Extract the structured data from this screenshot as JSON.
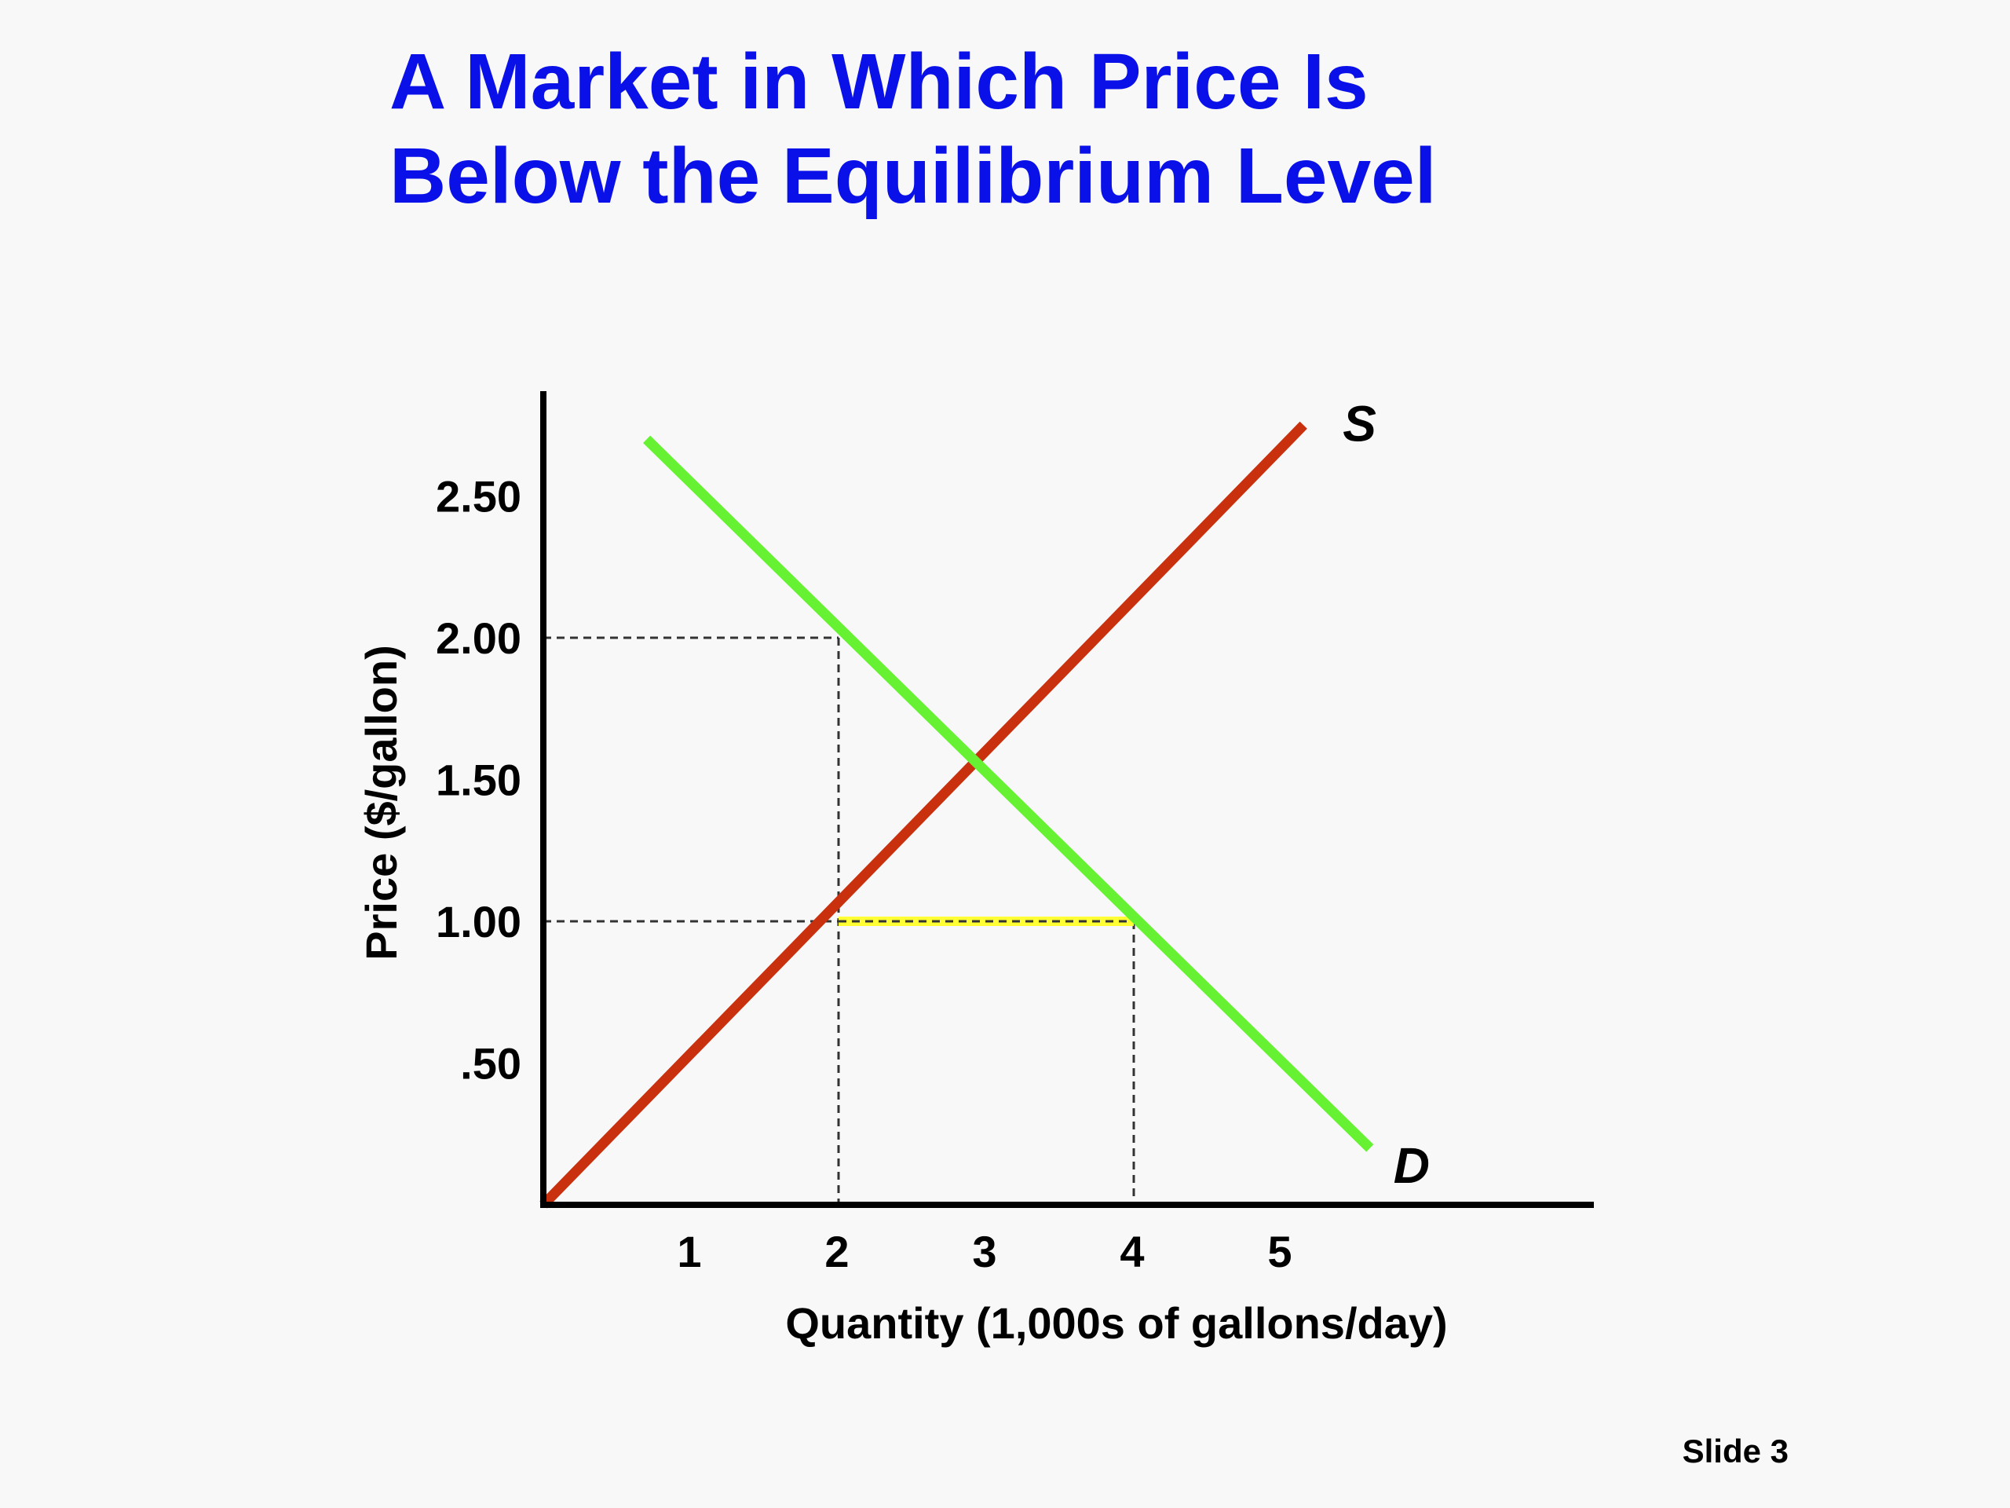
{
  "slide": {
    "title_lines": [
      "A Market in Which Price Is",
      "Below the Equilibrium Level"
    ],
    "slide_number": "Slide 3"
  },
  "colors": {
    "title": "#0a10e8",
    "supply": "#c9300e",
    "demand": "#66f232",
    "shortage": "#ffff33",
    "axis": "#000000",
    "guide": "#333333"
  },
  "chart_data": {
    "type": "line",
    "xlabel": "Quantity (1,000s of gallons/day)",
    "ylabel": "Price ($/gallon)",
    "xlim": [
      0,
      7.1
    ],
    "ylim": [
      0,
      2.9
    ],
    "x_ticks": [
      {
        "value": 1,
        "label": "1"
      },
      {
        "value": 2,
        "label": "2"
      },
      {
        "value": 3,
        "label": "3"
      },
      {
        "value": 4,
        "label": "4"
      },
      {
        "value": 5,
        "label": "5"
      }
    ],
    "y_ticks": [
      {
        "value": 0.5,
        "label": ".50"
      },
      {
        "value": 1.0,
        "label": "1.00"
      },
      {
        "value": 1.5,
        "label": "1.50"
      },
      {
        "value": 2.0,
        "label": "2.00"
      },
      {
        "value": 2.5,
        "label": "2.50"
      }
    ],
    "grid": false,
    "series": [
      {
        "name": "S",
        "color": "#c9300e",
        "points": [
          [
            0,
            0
          ],
          [
            5.15,
            2.75
          ]
        ]
      },
      {
        "name": "D",
        "color": "#66f232",
        "points": [
          [
            0.7,
            2.7
          ],
          [
            5.6,
            0.2
          ]
        ]
      }
    ],
    "guides": [
      {
        "from": [
          0,
          2.0
        ],
        "to": [
          2,
          2.0
        ]
      },
      {
        "from": [
          2,
          2.0
        ],
        "to": [
          2,
          0
        ]
      },
      {
        "from": [
          0,
          1.0
        ],
        "to": [
          2,
          1.0
        ]
      },
      {
        "from": [
          4,
          1.0
        ],
        "to": [
          4,
          0
        ]
      }
    ],
    "shortage": {
      "price": 1.0,
      "from": 2,
      "to": 4
    }
  }
}
